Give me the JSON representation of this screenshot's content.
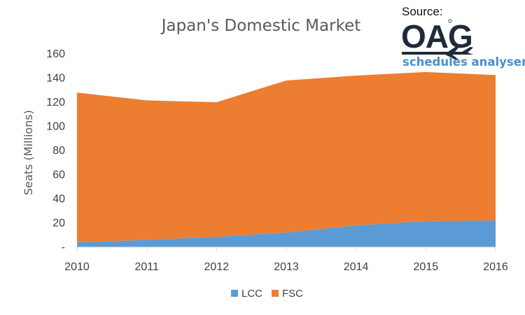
{
  "chart_data": {
    "type": "area",
    "stacked": true,
    "title": "Japan's Domestic Market",
    "ylabel": "Seats (Millions)",
    "xlabel": "",
    "x": [
      "2010",
      "2011",
      "2012",
      "2013",
      "2014",
      "2015",
      "2016"
    ],
    "ylim": [
      0,
      160
    ],
    "yticks": [
      0,
      20,
      40,
      60,
      80,
      100,
      120,
      140,
      160
    ],
    "ytick_labels": [
      "-",
      "20",
      "40",
      "60",
      "80",
      "100",
      "120",
      "140",
      "160"
    ],
    "grid": false,
    "legend_position": "bottom",
    "series": [
      {
        "name": "LCC",
        "values": [
          4,
          6,
          8.5,
          12,
          18,
          21.5,
          22
        ],
        "color": "#5b9bd5"
      },
      {
        "name": "FSC",
        "values": [
          124,
          115.5,
          111.5,
          126,
          124,
          123.5,
          120.5
        ],
        "color": "#ed7d31"
      }
    ]
  },
  "source": {
    "label": "Source:",
    "brand": "OAG",
    "product": "schedules analyser",
    "brand_color": "#1f2b3a",
    "product_color": "#4a8fc9"
  }
}
